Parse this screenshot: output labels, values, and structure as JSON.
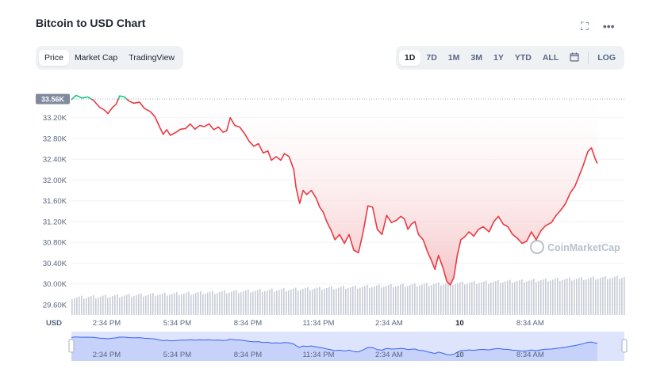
{
  "title": "Bitcoin to USD Chart",
  "header_icons": [
    {
      "name": "fullscreen-icon",
      "glyph": "⛶"
    },
    {
      "name": "more-options-icon",
      "glyph": "•••"
    }
  ],
  "view_tabs": [
    {
      "label": "Price",
      "active": true
    },
    {
      "label": "Market Cap",
      "active": false
    },
    {
      "label": "TradingView",
      "active": false
    }
  ],
  "range_tabs": [
    {
      "label": "1D",
      "active": true
    },
    {
      "label": "7D",
      "active": false
    },
    {
      "label": "1M",
      "active": false
    },
    {
      "label": "3M",
      "active": false
    },
    {
      "label": "1Y",
      "active": false
    },
    {
      "label": "YTD",
      "active": false
    },
    {
      "label": "ALL",
      "active": false
    }
  ],
  "calendar_icon": "calendar-icon",
  "log_label": "LOG",
  "watermark": "CoinMarketCap",
  "currency_label": "USD",
  "colors": {
    "down": "#ea3943",
    "up": "#16c784",
    "area_top": "#f5c0c3",
    "volume": "#c7ccd6",
    "navigator_fill": "#dde4fb",
    "navigator_line": "#3861fb",
    "grid": "#eff2f5",
    "axis_text": "#58667e",
    "badge_bg": "#808a9d"
  },
  "chart_data": {
    "type": "line",
    "title": "Bitcoin to USD Chart",
    "xlabel": "",
    "ylabel": "",
    "x_range": [
      0,
      23.5
    ],
    "ylim": [
      29.4,
      33.76
    ],
    "y_unit": "K USD",
    "baseline": 33.56,
    "current_label": "33.56K",
    "y_ticks": [
      {
        "value": 33.2,
        "label": "33.20K"
      },
      {
        "value": 32.8,
        "label": "32.80K"
      },
      {
        "value": 32.4,
        "label": "32.40K"
      },
      {
        "value": 32.0,
        "label": "32.00K"
      },
      {
        "value": 31.6,
        "label": "31.60K"
      },
      {
        "value": 31.2,
        "label": "31.20K"
      },
      {
        "value": 30.8,
        "label": "30.80K"
      },
      {
        "value": 30.4,
        "label": "30.40K"
      },
      {
        "value": 30.0,
        "label": "30.00K"
      },
      {
        "value": 29.6,
        "label": "29.60K"
      }
    ],
    "x_ticks": [
      {
        "hour": 1.5,
        "label": "2:34 PM"
      },
      {
        "hour": 4.5,
        "label": "5:34 PM"
      },
      {
        "hour": 7.5,
        "label": "8:34 PM"
      },
      {
        "hour": 10.5,
        "label": "11:34 PM"
      },
      {
        "hour": 13.5,
        "label": "2:34 AM"
      },
      {
        "hour": 16.5,
        "label": "10"
      },
      {
        "hour": 19.5,
        "label": "8:34 AM"
      }
    ],
    "series": [
      {
        "values": [
          [
            0.0,
            33.55
          ],
          [
            0.2,
            33.63
          ],
          [
            0.45,
            33.58
          ],
          [
            0.7,
            33.6
          ],
          [
            0.95,
            33.53
          ],
          [
            1.2,
            33.4
          ],
          [
            1.4,
            33.35
          ],
          [
            1.55,
            33.28
          ],
          [
            1.75,
            33.4
          ],
          [
            1.9,
            33.46
          ],
          [
            2.05,
            33.62
          ],
          [
            2.25,
            33.6
          ],
          [
            2.45,
            33.52
          ],
          [
            2.65,
            33.48
          ],
          [
            2.9,
            33.5
          ],
          [
            3.1,
            33.38
          ],
          [
            3.35,
            33.32
          ],
          [
            3.55,
            33.22
          ],
          [
            3.75,
            33.02
          ],
          [
            3.9,
            32.88
          ],
          [
            4.05,
            32.97
          ],
          [
            4.2,
            32.86
          ],
          [
            4.45,
            32.92
          ],
          [
            4.65,
            32.98
          ],
          [
            4.85,
            32.99
          ],
          [
            5.05,
            33.08
          ],
          [
            5.25,
            32.98
          ],
          [
            5.45,
            33.05
          ],
          [
            5.65,
            33.03
          ],
          [
            5.85,
            33.08
          ],
          [
            6.05,
            32.97
          ],
          [
            6.25,
            33.02
          ],
          [
            6.45,
            32.92
          ],
          [
            6.6,
            32.95
          ],
          [
            6.75,
            33.2
          ],
          [
            6.95,
            33.05
          ],
          [
            7.15,
            33.02
          ],
          [
            7.35,
            32.9
          ],
          [
            7.55,
            32.75
          ],
          [
            7.75,
            32.65
          ],
          [
            7.95,
            32.7
          ],
          [
            8.15,
            32.52
          ],
          [
            8.35,
            32.56
          ],
          [
            8.5,
            32.38
          ],
          [
            8.7,
            32.45
          ],
          [
            8.9,
            32.38
          ],
          [
            9.05,
            32.51
          ],
          [
            9.25,
            32.45
          ],
          [
            9.45,
            32.2
          ],
          [
            9.55,
            31.85
          ],
          [
            9.7,
            31.55
          ],
          [
            9.85,
            31.8
          ],
          [
            10.0,
            31.72
          ],
          [
            10.2,
            31.8
          ],
          [
            10.4,
            31.65
          ],
          [
            10.55,
            31.48
          ],
          [
            10.7,
            31.38
          ],
          [
            10.85,
            31.2
          ],
          [
            11.05,
            31.02
          ],
          [
            11.2,
            30.85
          ],
          [
            11.4,
            30.95
          ],
          [
            11.6,
            30.78
          ],
          [
            11.8,
            30.95
          ],
          [
            12.0,
            30.65
          ],
          [
            12.2,
            30.6
          ],
          [
            12.4,
            31.0
          ],
          [
            12.6,
            31.5
          ],
          [
            12.8,
            31.48
          ],
          [
            13.0,
            31.05
          ],
          [
            13.2,
            30.95
          ],
          [
            13.4,
            31.32
          ],
          [
            13.6,
            31.18
          ],
          [
            13.8,
            31.22
          ],
          [
            14.0,
            31.3
          ],
          [
            14.15,
            31.25
          ],
          [
            14.3,
            31.05
          ],
          [
            14.45,
            31.15
          ],
          [
            14.6,
            31.2
          ],
          [
            14.75,
            30.95
          ],
          [
            14.95,
            30.85
          ],
          [
            15.15,
            30.6
          ],
          [
            15.3,
            30.45
          ],
          [
            15.45,
            30.28
          ],
          [
            15.6,
            30.55
          ],
          [
            15.8,
            30.3
          ],
          [
            15.95,
            30.05
          ],
          [
            16.1,
            29.98
          ],
          [
            16.25,
            30.12
          ],
          [
            16.4,
            30.55
          ],
          [
            16.55,
            30.85
          ],
          [
            16.7,
            30.9
          ],
          [
            16.9,
            31.0
          ],
          [
            17.1,
            30.92
          ],
          [
            17.3,
            31.05
          ],
          [
            17.5,
            31.1
          ],
          [
            17.75,
            31.0
          ],
          [
            17.95,
            31.2
          ],
          [
            18.15,
            31.3
          ],
          [
            18.35,
            31.15
          ],
          [
            18.55,
            31.1
          ],
          [
            18.75,
            30.95
          ],
          [
            18.95,
            30.88
          ],
          [
            19.15,
            30.78
          ],
          [
            19.35,
            30.82
          ],
          [
            19.55,
            31.0
          ],
          [
            19.75,
            30.85
          ],
          [
            19.95,
            31.02
          ],
          [
            20.15,
            31.12
          ],
          [
            20.4,
            31.18
          ],
          [
            20.6,
            31.32
          ],
          [
            20.8,
            31.42
          ],
          [
            21.0,
            31.55
          ],
          [
            21.2,
            31.75
          ],
          [
            21.4,
            31.88
          ],
          [
            21.55,
            32.05
          ],
          [
            21.75,
            32.28
          ],
          [
            21.95,
            32.55
          ],
          [
            22.1,
            32.62
          ],
          [
            22.25,
            32.42
          ],
          [
            22.35,
            32.32
          ]
        ]
      }
    ]
  }
}
